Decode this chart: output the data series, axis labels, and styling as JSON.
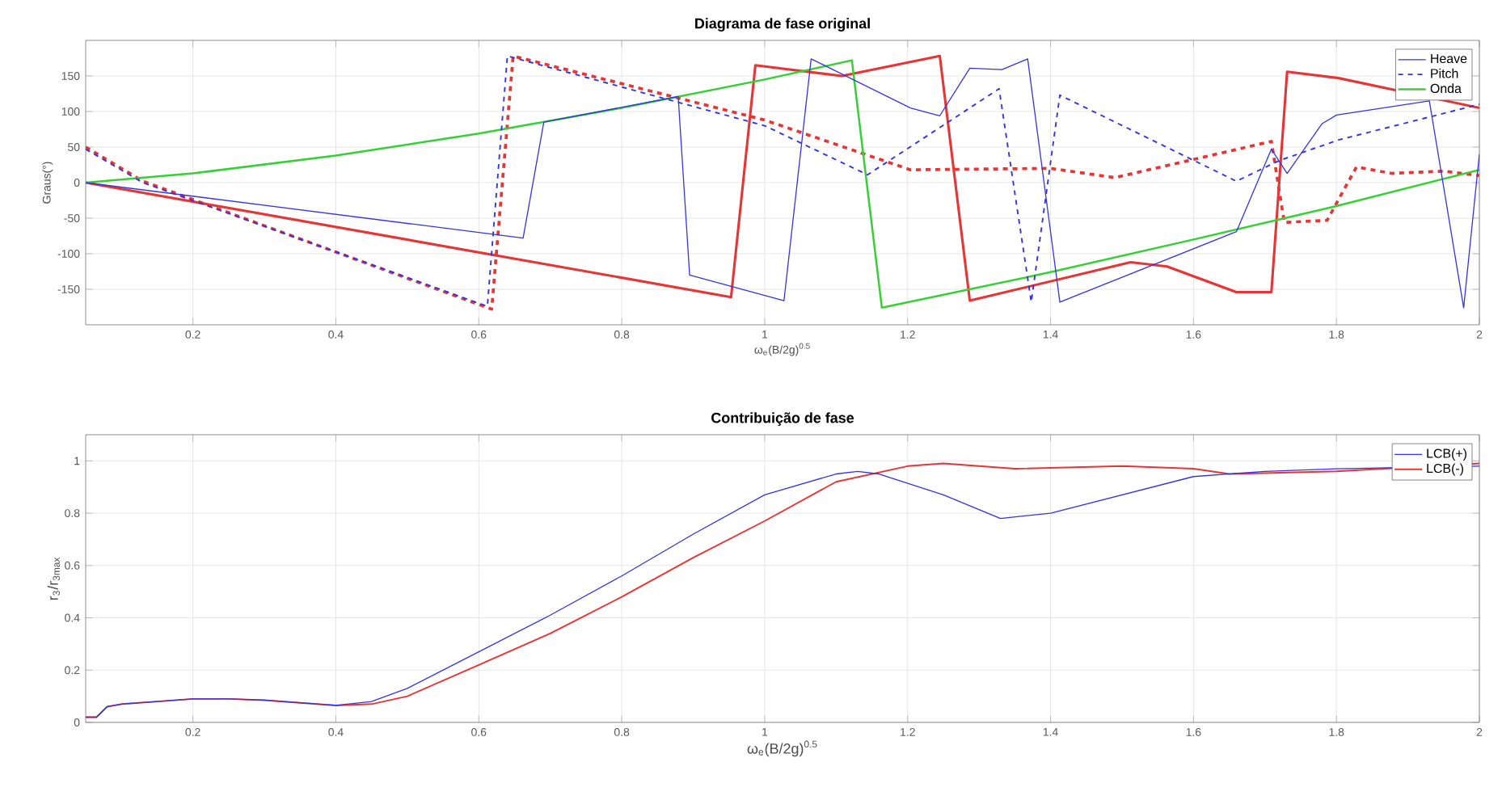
{
  "chart_data": [
    {
      "type": "line",
      "title": "Diagrama de fase original",
      "xlabel": "ω$_{e}$(B/2g)$^{0.5}$",
      "ylabel": "Graus(°)",
      "xlim": [
        0.05,
        2
      ],
      "ylim": [
        -200,
        200
      ],
      "xticks": [
        0.2,
        0.4,
        0.6,
        0.8,
        1,
        1.2,
        1.4,
        1.6,
        1.8,
        2
      ],
      "yticks": [
        -150,
        -100,
        -50,
        0,
        50,
        100,
        150
      ],
      "grid": true,
      "legend": "top right",
      "series": [
        {
          "name": "Heave",
          "color": "#3434e0",
          "line_style": "solid",
          "x": [
            0.05,
            0.662,
            0.691,
            0.879,
            0.895,
            1.027,
            1.065,
            1.204,
            1.245,
            1.287,
            1.332,
            1.368,
            1.413,
            1.66,
            1.709,
            1.731,
            1.78,
            1.8,
            1.93,
            1.978,
            2.0
          ],
          "values": [
            0,
            -78,
            85,
            121,
            -130,
            -166,
            174,
            105,
            94,
            161,
            159,
            174,
            -168,
            -69,
            47,
            13,
            83,
            95,
            115,
            -176,
            40
          ]
        },
        {
          "name": "Pitch",
          "color": "#3434e0",
          "line_style": "dashed",
          "x": [
            0.05,
            0.13,
            0.612,
            0.64,
            1.0,
            1.144,
            1.328,
            1.373,
            1.413,
            1.66,
            1.72,
            1.803,
            2.0
          ],
          "values": [
            47,
            0,
            -174,
            178,
            80,
            11,
            132,
            -168,
            123,
            2,
            31,
            60,
            110
          ]
        },
        {
          "name": "Onda",
          "color": "#34d034",
          "line_style": "solid",
          "x": [
            0.05,
            0.2,
            0.4,
            0.6,
            0.8,
            1.0,
            1.122,
            1.164,
            1.4,
            1.6,
            1.8,
            2.0
          ],
          "values": [
            0,
            13,
            38,
            69,
            105,
            145,
            172,
            -176,
            -126,
            -80,
            -33,
            18
          ]
        },
        {
          "color": "#e83434",
          "line_style": "solid",
          "x": [
            0.05,
            0.953,
            0.987,
            1.108,
            1.245,
            1.287,
            1.512,
            1.563,
            1.66,
            1.709,
            1.731,
            1.803,
            2.0
          ],
          "values": [
            0,
            -161,
            165,
            150,
            178,
            -166,
            -112,
            -118,
            -154,
            -154,
            156,
            147,
            105
          ]
        },
        {
          "color": "#e83434",
          "line_style": "dashed",
          "x": [
            0.05,
            0.13,
            0.618,
            0.648,
            1.0,
            1.204,
            1.4,
            1.49,
            1.709,
            1.727,
            1.787,
            1.828,
            1.877,
            1.95,
            2.0
          ],
          "values": [
            50,
            2,
            -178,
            178,
            88,
            18,
            20,
            7,
            58,
            -56,
            -53,
            22,
            13,
            16,
            10
          ]
        }
      ]
    },
    {
      "type": "line",
      "title": "Contribuição de fase",
      "xlabel": "ω$_{e}$(B/2g)$^{0.5}$",
      "ylabel": "r$_{3}$/r$_{3max}$",
      "xlim": [
        0.05,
        2
      ],
      "ylim": [
        0,
        1.1
      ],
      "xticks": [
        0.2,
        0.4,
        0.6,
        0.8,
        1,
        1.2,
        1.4,
        1.6,
        1.8,
        2
      ],
      "yticks": [
        0,
        0.2,
        0.4,
        0.6,
        0.8,
        1
      ],
      "grid": true,
      "legend": "top right",
      "series": [
        {
          "name": "LCB(+)",
          "color": "#3434e0",
          "line_style": "solid",
          "x": [
            0.05,
            0.065,
            0.08,
            0.1,
            0.15,
            0.2,
            0.25,
            0.3,
            0.35,
            0.4,
            0.45,
            0.5,
            0.6,
            0.7,
            0.8,
            0.9,
            1.0,
            1.1,
            1.13,
            1.16,
            1.25,
            1.33,
            1.4,
            1.5,
            1.6,
            1.7,
            1.8,
            1.9,
            2.0
          ],
          "values": [
            0.02,
            0.02,
            0.06,
            0.07,
            0.08,
            0.09,
            0.09,
            0.085,
            0.075,
            0.065,
            0.08,
            0.13,
            0.27,
            0.41,
            0.56,
            0.72,
            0.87,
            0.95,
            0.96,
            0.95,
            0.87,
            0.78,
            0.8,
            0.87,
            0.94,
            0.96,
            0.97,
            null,
            0.98
          ]
        },
        {
          "name": "LCB(-)",
          "color": "#e83434",
          "line_style": "solid",
          "x": [
            0.05,
            0.065,
            0.08,
            0.1,
            0.15,
            0.2,
            0.25,
            0.3,
            0.35,
            0.4,
            0.45,
            0.5,
            0.6,
            0.7,
            0.8,
            0.9,
            1.0,
            1.1,
            1.2,
            1.25,
            1.35,
            1.5,
            1.6,
            1.65,
            1.8,
            2.0
          ],
          "values": [
            0.02,
            0.02,
            0.06,
            0.07,
            0.08,
            0.09,
            0.09,
            0.085,
            0.075,
            0.065,
            0.07,
            0.1,
            0.22,
            0.34,
            0.48,
            0.63,
            0.77,
            0.92,
            0.98,
            0.99,
            0.97,
            0.98,
            0.97,
            0.95,
            0.96,
            0.99
          ]
        }
      ]
    }
  ]
}
